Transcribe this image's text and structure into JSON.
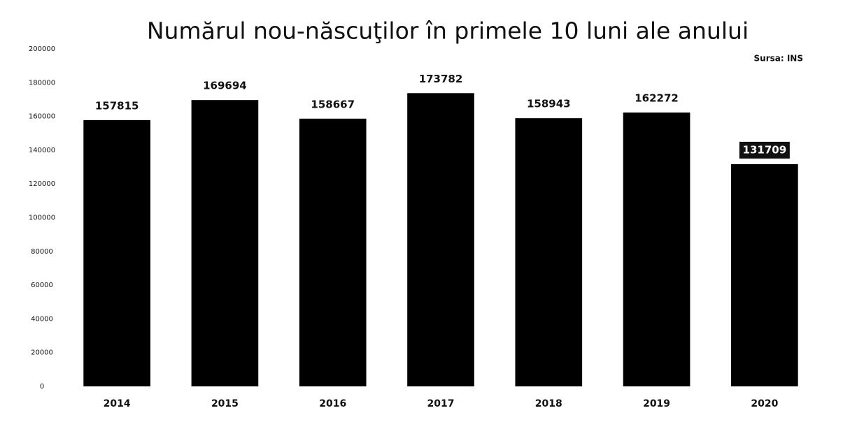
{
  "chart_data": {
    "type": "bar",
    "title": "Numărul nou-născuţilor în primele 10 luni ale anului",
    "subtitle": "Sursa: INS",
    "categories": [
      "2014",
      "2015",
      "2016",
      "2017",
      "2018",
      "2019",
      "2020"
    ],
    "values": [
      157815,
      169694,
      158667,
      173782,
      158943,
      162272,
      131709
    ],
    "color": "#000000",
    "ylim": [
      0,
      200000
    ],
    "yticks": [
      0,
      20000,
      40000,
      60000,
      80000,
      100000,
      120000,
      140000,
      160000,
      180000,
      200000
    ],
    "grid": false
  }
}
